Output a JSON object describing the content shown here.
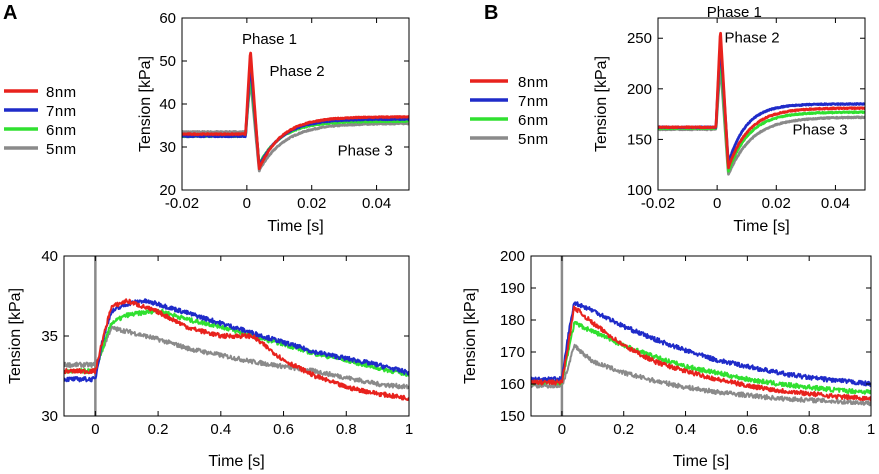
{
  "panels": [
    {
      "id": "A",
      "label": "A"
    },
    {
      "id": "B",
      "label": "B"
    }
  ],
  "legend": [
    {
      "label": "8nm",
      "color": "#e8221d"
    },
    {
      "label": "7nm",
      "color": "#1f2bc9"
    },
    {
      "label": "6nm",
      "color": "#30e030"
    },
    {
      "label": "5nm",
      "color": "#8a8a8a"
    }
  ],
  "chart_data": [
    {
      "id": "A-top",
      "type": "line",
      "xlabel": "Time  [s]",
      "ylabel": "Tension [kPa]",
      "xlim": [
        -0.02,
        0.05
      ],
      "ylim": [
        20,
        60
      ],
      "xticks": [
        -0.02,
        0,
        0.02,
        0.04
      ],
      "xtick_labels": [
        "-0.02",
        "0",
        "0.02",
        "0.04"
      ],
      "yticks": [
        20,
        30,
        40,
        50,
        60
      ],
      "ytick_labels": [
        "20",
        "30",
        "40",
        "50",
        "60"
      ],
      "annotations": [
        {
          "text": "Phase 1",
          "x": -0.0015,
          "y": 54
        },
        {
          "text": "Phase 2",
          "x": 0.007,
          "y": 46.5
        },
        {
          "text": "Phase 3",
          "x": 0.028,
          "y": 28
        }
      ],
      "series": [
        {
          "name": "8nm",
          "color": "#e8221d",
          "base": 33,
          "peak": 52.5,
          "min": 25,
          "plateau": 37,
          "tau": 0.007
        },
        {
          "name": "7nm",
          "color": "#1f2bc9",
          "base": 32.5,
          "peak": 50,
          "min": 25.5,
          "plateau": 36.5,
          "tau": 0.007
        },
        {
          "name": "6nm",
          "color": "#30e030",
          "base": 32.5,
          "peak": 47.5,
          "min": 26,
          "plateau": 36,
          "tau": 0.007
        },
        {
          "name": "5nm",
          "color": "#8a8a8a",
          "base": 33.5,
          "peak": 46,
          "min": 24.5,
          "plateau": 35.5,
          "tau": 0.008
        }
      ]
    },
    {
      "id": "A-bottom",
      "type": "line",
      "xlabel": "Time  [s]",
      "ylabel": "Tension [kPa]",
      "xlim": [
        -0.1,
        1.0
      ],
      "ylim": [
        30,
        40
      ],
      "xticks": [
        0,
        0.2,
        0.4,
        0.6,
        0.8,
        1
      ],
      "xtick_labels": [
        "0",
        "0.2",
        "0.4",
        "0.6",
        "0.8",
        "1"
      ],
      "yticks": [
        30,
        35,
        40
      ],
      "ytick_labels": [
        "30",
        "35",
        "40"
      ],
      "spike": {
        "x": 0.0,
        "color": "#8a8a8a"
      },
      "series": [
        {
          "name": "8nm",
          "color": "#e8221d",
          "base": 32.8,
          "points": [
            [
              0.02,
              34.5
            ],
            [
              0.05,
              36.8
            ],
            [
              0.1,
              37.2
            ],
            [
              0.2,
              36.5
            ],
            [
              0.3,
              35.5
            ],
            [
              0.4,
              35.0
            ],
            [
              0.5,
              35.0
            ],
            [
              0.6,
              33.5
            ],
            [
              0.7,
              32.5
            ],
            [
              0.8,
              31.8
            ],
            [
              0.9,
              31.4
            ],
            [
              1.0,
              31.1
            ]
          ]
        },
        {
          "name": "7nm",
          "color": "#1f2bc9",
          "base": 32.3,
          "points": [
            [
              0.02,
              34.5
            ],
            [
              0.05,
              36.5
            ],
            [
              0.1,
              37.0
            ],
            [
              0.15,
              37.2
            ],
            [
              0.2,
              37.0
            ],
            [
              0.3,
              36.4
            ],
            [
              0.4,
              35.8
            ],
            [
              0.5,
              35.2
            ],
            [
              0.6,
              34.6
            ],
            [
              0.7,
              34.0
            ],
            [
              0.8,
              33.6
            ],
            [
              0.9,
              33.2
            ],
            [
              1.0,
              32.7
            ]
          ]
        },
        {
          "name": "6nm",
          "color": "#30e030",
          "base": 32.8,
          "points": [
            [
              0.02,
              34.0
            ],
            [
              0.05,
              35.8
            ],
            [
              0.1,
              36.3
            ],
            [
              0.2,
              36.6
            ],
            [
              0.3,
              36.0
            ],
            [
              0.4,
              35.6
            ],
            [
              0.5,
              35.0
            ],
            [
              0.6,
              34.5
            ],
            [
              0.7,
              33.9
            ],
            [
              0.8,
              33.5
            ],
            [
              0.9,
              33.0
            ],
            [
              1.0,
              32.6
            ]
          ]
        },
        {
          "name": "5nm",
          "color": "#8a8a8a",
          "base": 33.2,
          "points": [
            [
              0.02,
              34.0
            ],
            [
              0.05,
              35.5
            ],
            [
              0.1,
              35.3
            ],
            [
              0.2,
              34.8
            ],
            [
              0.3,
              34.2
            ],
            [
              0.4,
              33.8
            ],
            [
              0.5,
              33.4
            ],
            [
              0.6,
              33.1
            ],
            [
              0.7,
              32.8
            ],
            [
              0.8,
              32.4
            ],
            [
              0.9,
              32.0
            ],
            [
              1.0,
              31.8
            ]
          ]
        }
      ]
    },
    {
      "id": "B-top",
      "type": "line",
      "xlabel": "Time  [s]",
      "ylabel": "Tension [kPa]",
      "xlim": [
        -0.02,
        0.05
      ],
      "ylim": [
        100,
        270
      ],
      "xticks": [
        -0.02,
        0,
        0.02,
        0.04
      ],
      "xtick_labels": [
        "-0.02",
        "0",
        "0.02",
        "0.04"
      ],
      "yticks": [
        100,
        150,
        200,
        250
      ],
      "ytick_labels": [
        "100",
        "150",
        "200",
        "250"
      ],
      "annotations": [
        {
          "text": "Phase 1",
          "x": -0.0035,
          "y": 271
        },
        {
          "text": "Phase 2",
          "x": 0.0025,
          "y": 246
        },
        {
          "text": "Phase 3",
          "x": 0.0255,
          "y": 155
        }
      ],
      "series": [
        {
          "name": "8nm",
          "color": "#e8221d",
          "base": 162,
          "peak": 258,
          "min": 122,
          "plateau": 181,
          "tau": 0.007
        },
        {
          "name": "7nm",
          "color": "#1f2bc9",
          "base": 162,
          "peak": 248,
          "min": 126,
          "plateau": 185,
          "tau": 0.006
        },
        {
          "name": "6nm",
          "color": "#30e030",
          "base": 161,
          "peak": 238,
          "min": 118,
          "plateau": 177,
          "tau": 0.007
        },
        {
          "name": "5nm",
          "color": "#8a8a8a",
          "base": 160,
          "peak": 225,
          "min": 115,
          "plateau": 172,
          "tau": 0.008
        }
      ]
    },
    {
      "id": "B-bottom",
      "type": "line",
      "xlabel": "Time  [s]",
      "ylabel": "Tension [kPa]",
      "xlim": [
        -0.1,
        1.0
      ],
      "ylim": [
        150,
        200
      ],
      "xticks": [
        0,
        0.2,
        0.4,
        0.6,
        0.8,
        1
      ],
      "xtick_labels": [
        "0",
        "0.2",
        "0.4",
        "0.6",
        "0.8",
        "1"
      ],
      "yticks": [
        150,
        160,
        170,
        180,
        190,
        200
      ],
      "ytick_labels": [
        "150",
        "160",
        "170",
        "180",
        "190",
        "200"
      ],
      "spike": {
        "x": 0.0,
        "color": "#8a8a8a"
      },
      "series": [
        {
          "name": "8nm",
          "color": "#e8221d",
          "base": 160.5,
          "points": [
            [
              0.02,
              172
            ],
            [
              0.04,
              184
            ],
            [
              0.1,
              179
            ],
            [
              0.2,
              172
            ],
            [
              0.3,
              167
            ],
            [
              0.4,
              164
            ],
            [
              0.5,
              161.5
            ],
            [
              0.6,
              159.5
            ],
            [
              0.7,
              158
            ],
            [
              0.8,
              157
            ],
            [
              0.9,
              156
            ],
            [
              1.0,
              155.5
            ]
          ]
        },
        {
          "name": "7nm",
          "color": "#1f2bc9",
          "base": 161.5,
          "points": [
            [
              0.02,
              175
            ],
            [
              0.04,
              185.5
            ],
            [
              0.1,
              183
            ],
            [
              0.2,
              178
            ],
            [
              0.3,
              174
            ],
            [
              0.4,
              170.5
            ],
            [
              0.5,
              167.5
            ],
            [
              0.6,
              165.5
            ],
            [
              0.7,
              163.5
            ],
            [
              0.8,
              162
            ],
            [
              0.9,
              161
            ],
            [
              1.0,
              160
            ]
          ]
        },
        {
          "name": "6nm",
          "color": "#30e030",
          "base": 160.5,
          "points": [
            [
              0.02,
              170
            ],
            [
              0.04,
              179
            ],
            [
              0.1,
              176.5
            ],
            [
              0.2,
              172
            ],
            [
              0.3,
              168.5
            ],
            [
              0.4,
              165.5
            ],
            [
              0.5,
              163.5
            ],
            [
              0.6,
              161.5
            ],
            [
              0.7,
              160
            ],
            [
              0.8,
              159
            ],
            [
              0.9,
              158
            ],
            [
              1.0,
              157.5
            ]
          ]
        },
        {
          "name": "5nm",
          "color": "#8a8a8a",
          "base": 159.5,
          "points": [
            [
              0.02,
              165
            ],
            [
              0.04,
              172
            ],
            [
              0.1,
              167
            ],
            [
              0.2,
              163.5
            ],
            [
              0.3,
              161
            ],
            [
              0.4,
              159
            ],
            [
              0.5,
              157.5
            ],
            [
              0.6,
              156.5
            ],
            [
              0.7,
              155.5
            ],
            [
              0.8,
              155
            ],
            [
              0.9,
              154.5
            ],
            [
              1.0,
              154
            ]
          ]
        }
      ]
    }
  ]
}
